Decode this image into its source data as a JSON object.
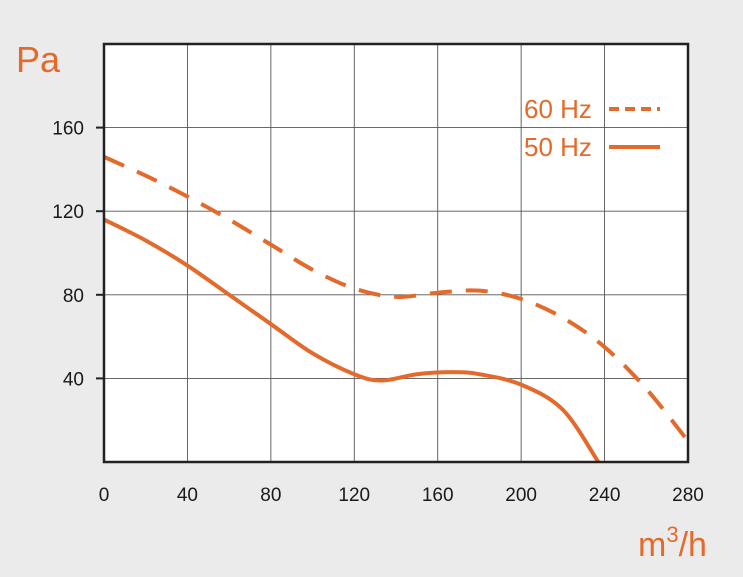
{
  "chart_data": {
    "type": "line",
    "title": "",
    "ylabel": "Pa",
    "xlabel_base": "m",
    "xlabel_sup": "3",
    "xlabel_rest": "/h",
    "xlim": [
      0,
      280
    ],
    "ylim": [
      0,
      200
    ],
    "xticks": [
      0,
      40,
      80,
      120,
      160,
      200,
      240,
      280
    ],
    "yticks": [
      40,
      80,
      120,
      160
    ],
    "grid": true,
    "legend_position": "top-right",
    "accent_color": "#e36a2a",
    "series": [
      {
        "name": "60 Hz",
        "style": "dashed",
        "x": [
          0,
          20,
          40,
          60,
          80,
          100,
          120,
          140,
          160,
          180,
          200,
          220,
          240,
          260,
          280
        ],
        "y": [
          146,
          137,
          127,
          116,
          104,
          92,
          83,
          79,
          81,
          82,
          78,
          69,
          55,
          35,
          10
        ]
      },
      {
        "name": "50 Hz",
        "style": "solid",
        "x": [
          0,
          20,
          40,
          60,
          80,
          100,
          120,
          133,
          150,
          167,
          180,
          200,
          220,
          237
        ],
        "y": [
          116,
          106,
          94,
          80,
          66,
          52,
          42,
          39,
          42,
          43,
          42,
          37,
          25,
          0
        ]
      }
    ]
  }
}
